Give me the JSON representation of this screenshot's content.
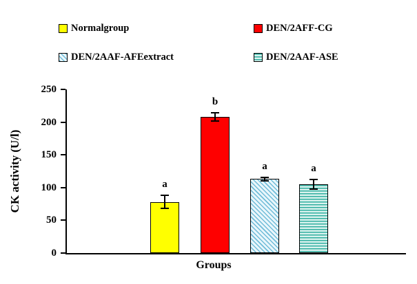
{
  "legend": {
    "items": [
      {
        "label": "Normalgroup",
        "fill": "yellow"
      },
      {
        "label": "DEN/2AFF-CG",
        "fill": "red"
      },
      {
        "label": "DEN/2AAF-AFEextract",
        "fill": "blue-hatch"
      },
      {
        "label": "DEN/2AAF-ASE",
        "fill": "teal-hatch"
      }
    ]
  },
  "chart_data": {
    "type": "bar",
    "categories": [
      "Normalgroup",
      "DEN/2AFF-CG",
      "DEN/2AAF-AFEextract",
      "DEN/2AAF-ASE"
    ],
    "values": [
      78,
      208,
      113,
      105
    ],
    "errors": [
      10,
      6,
      3,
      7
    ],
    "bar_labels": [
      "a",
      "b",
      "a",
      "a"
    ],
    "fills": [
      "yellow",
      "red",
      "blue-hatch",
      "teal-hatch"
    ],
    "title": "",
    "xlabel": "Groups",
    "ylabel": "CK activity (U/l)",
    "ylim": [
      0,
      250
    ],
    "yticks": [
      0,
      50,
      100,
      150,
      200,
      250
    ],
    "grid": false,
    "legend_position": "top",
    "colors": {
      "yellow": "#ffff00",
      "red": "#fe0000",
      "blue_hatch_line": "#6fbcd8",
      "teal_hatch_line": "#2fae9f",
      "axis": "#000000"
    }
  }
}
